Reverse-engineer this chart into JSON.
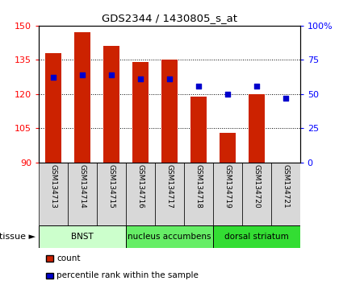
{
  "title": "GDS2344 / 1430805_s_at",
  "samples": [
    "GSM134713",
    "GSM134714",
    "GSM134715",
    "GSM134716",
    "GSM134717",
    "GSM134718",
    "GSM134719",
    "GSM134720",
    "GSM134721"
  ],
  "counts": [
    138,
    147,
    141,
    134,
    135,
    119,
    103,
    120,
    90
  ],
  "percentiles": [
    62,
    64,
    64,
    61,
    61,
    56,
    50,
    56,
    47
  ],
  "ylim_left": [
    90,
    150
  ],
  "ylim_right": [
    0,
    100
  ],
  "yticks_left": [
    90,
    105,
    120,
    135,
    150
  ],
  "yticks_right": [
    0,
    25,
    50,
    75,
    100
  ],
  "bar_color": "#cc2200",
  "dot_color": "#0000cc",
  "bar_bottom": 90,
  "tissue_groups": [
    {
      "label": "BNST",
      "start": 0,
      "end": 3,
      "color": "#ccffcc"
    },
    {
      "label": "nucleus accumbens",
      "start": 3,
      "end": 6,
      "color": "#66ee66"
    },
    {
      "label": "dorsal striatum",
      "start": 6,
      "end": 9,
      "color": "#33dd33"
    }
  ],
  "legend_items": [
    {
      "label": "count",
      "color": "#cc2200"
    },
    {
      "label": "percentile rank within the sample",
      "color": "#0000cc"
    }
  ]
}
